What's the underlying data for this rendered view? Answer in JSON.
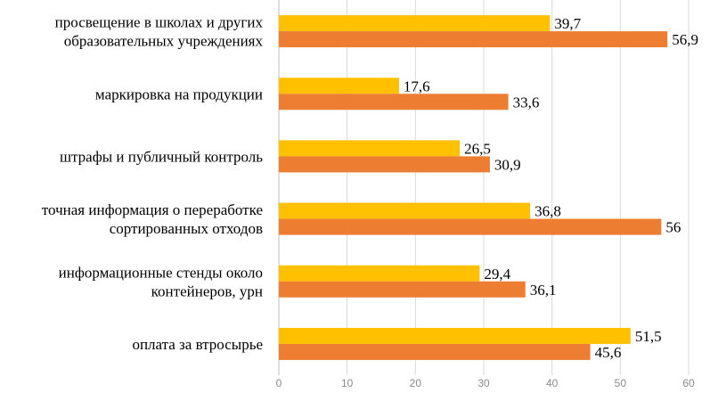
{
  "chart_data": {
    "type": "bar",
    "orientation": "horizontal",
    "categories": [
      [
        "просвещение в школах и других",
        "образовательных учреждениях"
      ],
      [
        "маркировка на продукции"
      ],
      [
        "штрафы и публичный контроль"
      ],
      [
        "точная информация о переработке",
        "сортированных отходов"
      ],
      [
        "информационные стенды около",
        "контейнеров, урн"
      ],
      [
        "оплата за втросырье"
      ]
    ],
    "series": [
      {
        "name": "series-1",
        "color": "#FFC000",
        "values": [
          39.7,
          17.6,
          26.5,
          36.8,
          29.4,
          51.5
        ],
        "labels": [
          "39,7",
          "17,6",
          "26,5",
          "36,8",
          "29,4",
          "51,5"
        ]
      },
      {
        "name": "series-2",
        "color": "#ED7D31",
        "values": [
          56.9,
          33.6,
          30.9,
          56,
          36.1,
          45.6
        ],
        "labels": [
          "56,9",
          "33,6",
          "30,9",
          "56",
          "36,1",
          "45,6"
        ]
      }
    ],
    "xlim": [
      0,
      60
    ],
    "xticks": [
      0,
      10,
      20,
      30,
      40,
      50,
      60
    ],
    "xtick_labels": [
      "0",
      "10",
      "20",
      "30",
      "40",
      "50",
      "60"
    ],
    "grid": true,
    "legend": "none"
  }
}
